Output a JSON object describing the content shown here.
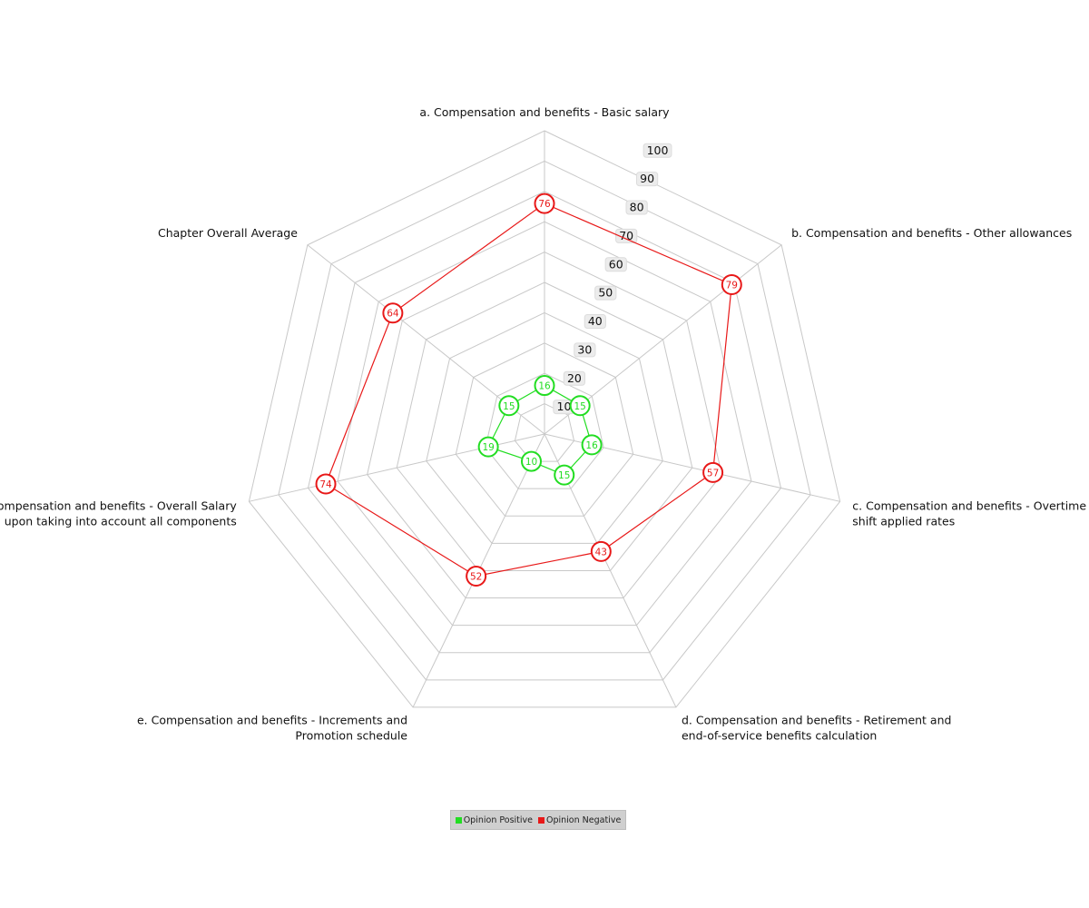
{
  "chart_data": {
    "type": "radar",
    "axes": [
      [
        "a. Compensation and benefits - Basic salary"
      ],
      [
        "b. Compensation and benefits - Other allowances"
      ],
      [
        "c. Compensation and benefits - Overtime  nd",
        "shift applied rates"
      ],
      [
        "d. Compensation and benefits - Retirement and",
        "end-of-service benefits calculation"
      ],
      [
        "e. Compensation and benefits - Increments and",
        "Promotion schedule"
      ],
      [
        "f. Compensation and benefits - Overall Salary",
        "package, upon taking into account all components"
      ],
      [
        "Chapter Overall Average"
      ]
    ],
    "rlim": [
      0,
      100
    ],
    "ticks": [
      "10",
      "20",
      "30",
      "40",
      "50",
      "60",
      "70",
      "80",
      "90",
      "100"
    ],
    "tick_values": [
      10,
      20,
      30,
      40,
      50,
      60,
      70,
      80,
      90,
      100
    ],
    "grid": true,
    "legend_position": "bottom-center",
    "series": [
      {
        "name": "Opinion Positive",
        "color": "#22dd22",
        "values": [
          16,
          15,
          16,
          15,
          10,
          19,
          15
        ]
      },
      {
        "name": "Opinion Negative",
        "color": "#e81818",
        "values": [
          76,
          79,
          57,
          43,
          52,
          74,
          64
        ]
      }
    ]
  },
  "legend": {
    "items": [
      {
        "label": "Opinion Positive",
        "color": "#22dd22"
      },
      {
        "label": "Opinion Negative",
        "color": "#e81818"
      }
    ]
  }
}
